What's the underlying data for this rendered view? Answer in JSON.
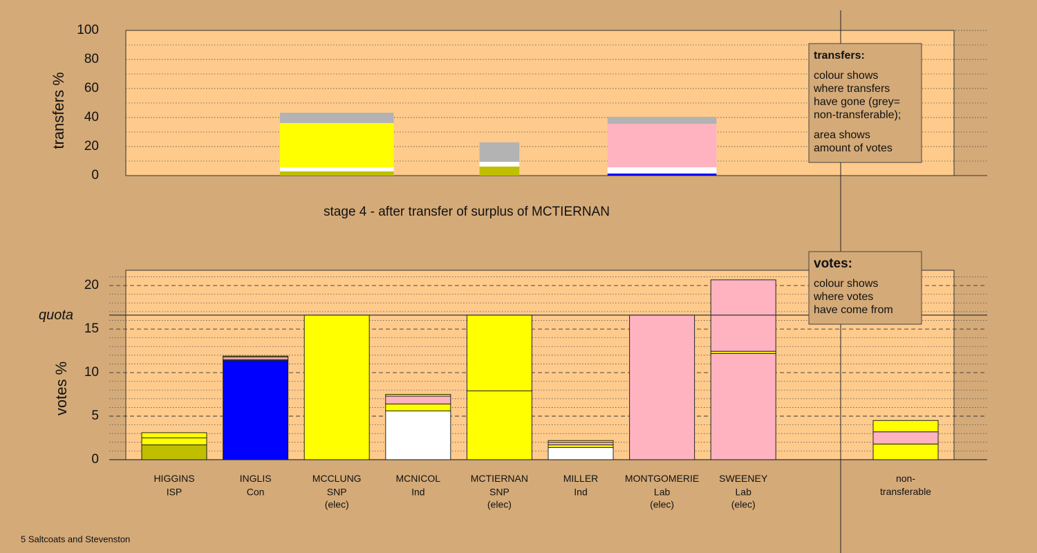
{
  "chart_data": [
    {
      "type": "bar",
      "stacked": true,
      "caption": "stage 4 - after transfer of surplus of MCTIERNAN",
      "y_label": "transfers %",
      "ylim": [
        0,
        100
      ],
      "yticks": [
        0,
        20,
        40,
        60,
        80,
        100
      ],
      "minor_yticks": [
        10,
        30,
        50,
        70,
        90
      ],
      "bar_widths": [
        null,
        null,
        1.4,
        null,
        0.49,
        null,
        1.34,
        null,
        null
      ],
      "series": [
        {
          "color": "#bfbf00",
          "values": [
            null,
            null,
            2.9,
            null,
            6.2,
            null,
            null,
            null,
            null
          ]
        },
        {
          "color": "#0000ff",
          "values": [
            null,
            null,
            null,
            null,
            null,
            null,
            1.4,
            null,
            null
          ]
        },
        {
          "color": "#ffffff",
          "values": [
            null,
            null,
            2.8,
            null,
            3.3,
            null,
            4.3,
            null,
            null
          ]
        },
        {
          "color": "#ffff00",
          "values": [
            null,
            null,
            30.5,
            null,
            null,
            null,
            null,
            null,
            null
          ]
        },
        {
          "color": "#ffb3c1",
          "values": [
            null,
            null,
            null,
            null,
            null,
            null,
            30,
            null,
            null
          ]
        },
        {
          "color": "#b3b3b3",
          "values": [
            null,
            null,
            7.1,
            null,
            13.4,
            null,
            4.8,
            null,
            null
          ]
        }
      ]
    },
    {
      "type": "bar",
      "stacked": true,
      "y_label": "votes %",
      "ylim": [
        0,
        21.75
      ],
      "yticks": [
        0,
        5,
        10,
        15,
        20
      ],
      "minor_yticks": [
        1,
        2,
        3,
        4,
        6,
        7,
        8,
        9,
        11,
        12,
        13,
        14,
        16,
        17,
        18,
        19,
        21
      ],
      "quota": 16.6,
      "quota_label": "quota",
      "categories": [
        "HIGGINS",
        "INGLIS",
        "MCCLUNG",
        "MCNICOL",
        "MCTIERNAN",
        "MILLER",
        "MONTGOMERIE",
        "SWEENEY",
        "non-transferable"
      ],
      "parties": [
        "ISP",
        "Con",
        "SNP",
        "Ind",
        "SNP",
        "Ind",
        "Lab",
        "Lab",
        null
      ],
      "status": [
        null,
        null,
        "(elec)",
        null,
        "(elec)",
        null,
        "(elec)",
        "(elec)",
        null
      ],
      "series": [
        {
          "colors": [
            "#bfbf00",
            "#0000ff",
            "#ffff00",
            "#ffffff",
            "#ffff00",
            "#ffffff",
            "#ffb3c1",
            "#ffb3c1",
            null
          ],
          "values": [
            1.7,
            11.4,
            16.6,
            5.6,
            7.9,
            1.4,
            16.6,
            12.2,
            null
          ]
        },
        {
          "color": "#ffff00",
          "values": [
            0.8,
            0.1,
            null,
            0.8,
            8.7,
            0.3,
            null,
            0.25,
            1.8
          ]
        },
        {
          "color": "#ffb3c1",
          "values": [
            null,
            0.3,
            null,
            0.9,
            null,
            0.3,
            null,
            8.2,
            1.4
          ]
        },
        {
          "color": "#ffff00",
          "values": [
            0.6,
            0.1,
            null,
            0.2,
            null,
            0.2,
            null,
            null,
            1.3
          ]
        }
      ]
    }
  ],
  "notes": [
    {
      "title": "transfers:",
      "paragraphs": [
        [
          "colour shows",
          "where transfers",
          "have gone (grey=",
          "non-transferable);"
        ],
        [
          "area shows",
          "amount of votes"
        ]
      ]
    },
    {
      "title": "votes:",
      "paragraphs": [
        [
          "colour shows",
          "where votes",
          "have come from"
        ]
      ]
    }
  ],
  "footer": "5 Saltcoats and Stevenston"
}
